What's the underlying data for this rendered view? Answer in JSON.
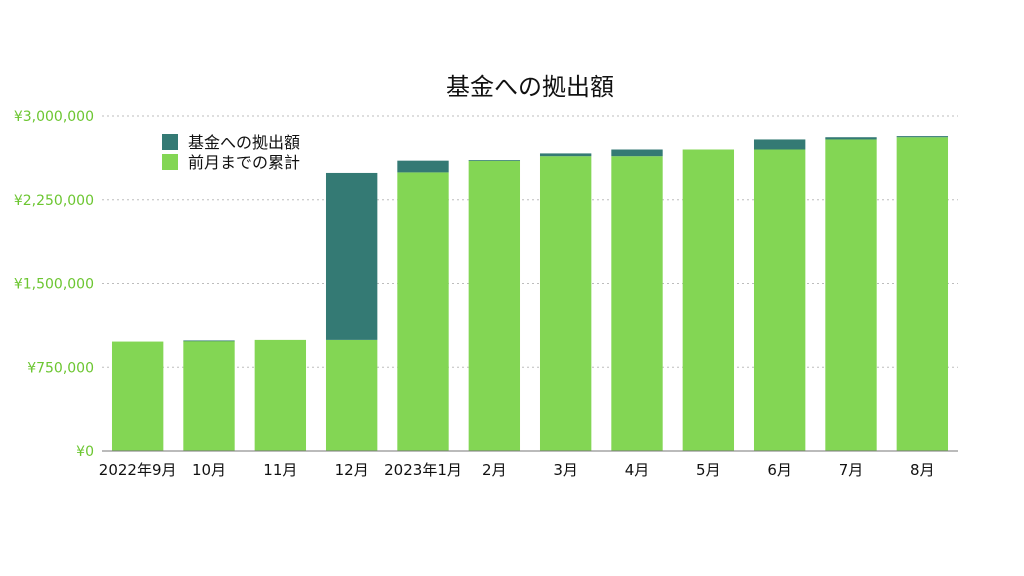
{
  "chart_data": {
    "type": "bar",
    "stacked": true,
    "title": "基金への拠出額",
    "xlabel": "",
    "ylabel": "",
    "categories": [
      "2022年9月",
      "10月",
      "11月",
      "12月",
      "2023年1月",
      "2月",
      "3月",
      "4月",
      "5月",
      "6月",
      "7月",
      "8月"
    ],
    "series": [
      {
        "name": "前月までの累計",
        "color": "#83d654",
        "values": [
          980000,
          985000,
          995000,
          995000,
          2495000,
          2600000,
          2640000,
          2640000,
          2700000,
          2700000,
          2790000,
          2810000
        ]
      },
      {
        "name": "基金への拠出額",
        "color": "#347a74",
        "values": [
          0,
          5000,
          0,
          1495000,
          105000,
          5000,
          25000,
          60000,
          0,
          90000,
          20000,
          10000
        ]
      }
    ],
    "yticks": [
      "¥0",
      "¥750,000",
      "¥1,500,000",
      "¥2,250,000",
      "¥3,000,000"
    ],
    "ytick_values": [
      0,
      750000,
      1500000,
      2250000,
      3000000
    ],
    "ylim": [
      0,
      3000000
    ],
    "grid": true,
    "legend_position": "top-left"
  }
}
